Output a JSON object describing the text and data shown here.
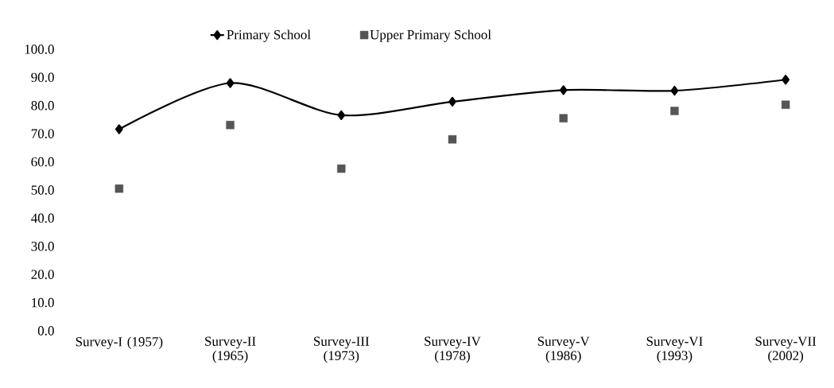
{
  "chart_data": {
    "type": "line",
    "categories": [
      "Survey-I (1957)",
      "Survey-II (1965)",
      "Survey-III (1973)",
      "Survey-IV (1978)",
      "Survey-V (1986)",
      "Survey-VI (1993)",
      "Survey-VII (2002)"
    ],
    "series": [
      {
        "name": "Primary School",
        "color": "#000000",
        "marker": "diamond",
        "values": [
          71.6,
          88.0,
          76.6,
          81.4,
          85.5,
          85.3,
          89.2
        ]
      },
      {
        "name": "Upper Primary School",
        "type": "scatter",
        "color": "#555555",
        "marker": "square",
        "values": [
          50.5,
          73.1,
          57.6,
          68.0,
          75.5,
          78.1,
          80.3
        ]
      }
    ],
    "ylim": [
      0,
      100
    ],
    "yticks": [
      {
        "value": 0,
        "label": "0.0"
      },
      {
        "value": 10,
        "label": "10.0"
      },
      {
        "value": 20,
        "label": "20.0"
      },
      {
        "value": 30,
        "label": "30.0"
      },
      {
        "value": 40,
        "label": "40.0"
      },
      {
        "value": 50,
        "label": "50.0"
      },
      {
        "value": 60,
        "label": "60.0"
      },
      {
        "value": 70,
        "label": "70.0"
      },
      {
        "value": 80,
        "label": "80.0"
      },
      {
        "value": 90,
        "label": "90.0"
      },
      {
        "value": 100,
        "label": "100.0"
      }
    ],
    "grid": false,
    "legend": "top"
  }
}
